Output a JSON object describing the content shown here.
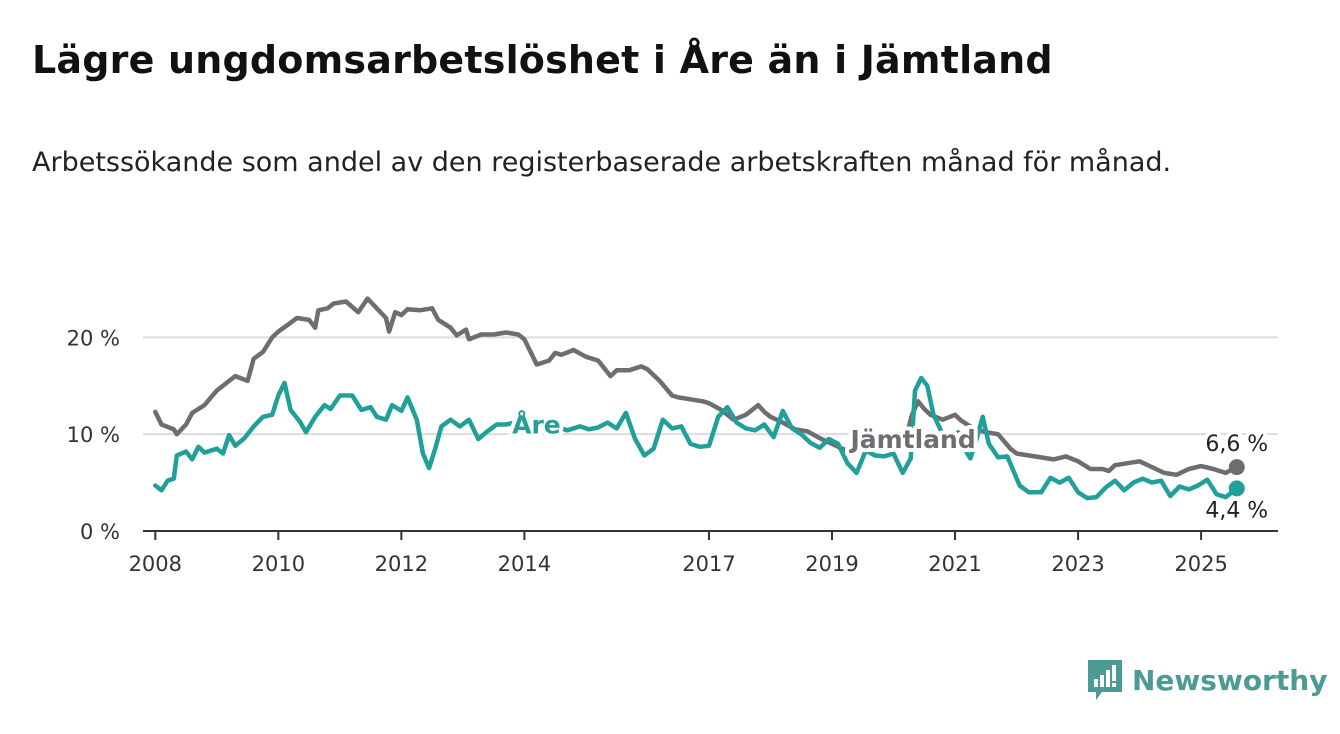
{
  "header": {
    "title": "Lägre ungdomsarbetslöshet i Åre än i Jämtland",
    "subtitle": "Arbetssökande som andel av den registerbaserade arbetskraften månad för månad."
  },
  "brand": {
    "name": "Newsworthy",
    "icon": "newsworthy-logo-icon",
    "color": "#4d9a95"
  },
  "chart_data": {
    "type": "line",
    "title": "Lägre ungdomsarbetslöshet i Åre än i Jämtland",
    "subtitle": "Arbetssökande som andel av den registerbaserade arbetskraften månad för månad.",
    "xlabel": "",
    "ylabel": "",
    "ylim": [
      0,
      22
    ],
    "xlim": [
      2007.8,
      2026.25
    ],
    "grid": "horizontal",
    "x_ticks": [
      2008,
      2010,
      2012,
      2014,
      2017,
      2019,
      2021,
      2023,
      2025
    ],
    "y_ticks": [
      0,
      10,
      20
    ],
    "y_tick_labels": [
      "0 %",
      "10 %",
      "20 %"
    ],
    "series": [
      {
        "name": "Jämtland",
        "color": "#6e6d72",
        "end_label": "6,6 %",
        "points": [
          [
            2008.0,
            12.3
          ],
          [
            2008.1,
            11.0
          ],
          [
            2008.3,
            10.5
          ],
          [
            2008.35,
            10.0
          ],
          [
            2008.5,
            11.0
          ],
          [
            2008.6,
            12.2
          ],
          [
            2008.8,
            13.0
          ],
          [
            2009.0,
            14.5
          ],
          [
            2009.2,
            15.5
          ],
          [
            2009.3,
            16.0
          ],
          [
            2009.5,
            15.5
          ],
          [
            2009.6,
            17.8
          ],
          [
            2009.75,
            18.5
          ],
          [
            2009.9,
            20.0
          ],
          [
            2010.0,
            20.6
          ],
          [
            2010.2,
            21.5
          ],
          [
            2010.3,
            22.0
          ],
          [
            2010.5,
            21.8
          ],
          [
            2010.6,
            21.0
          ],
          [
            2010.65,
            22.8
          ],
          [
            2010.8,
            23.0
          ],
          [
            2010.9,
            23.5
          ],
          [
            2011.1,
            23.7
          ],
          [
            2011.3,
            22.6
          ],
          [
            2011.45,
            24.0
          ],
          [
            2011.6,
            23.0
          ],
          [
            2011.75,
            22.0
          ],
          [
            2011.8,
            20.6
          ],
          [
            2011.9,
            22.6
          ],
          [
            2012.0,
            22.3
          ],
          [
            2012.1,
            22.9
          ],
          [
            2012.3,
            22.8
          ],
          [
            2012.5,
            23.0
          ],
          [
            2012.6,
            21.8
          ],
          [
            2012.8,
            21.0
          ],
          [
            2012.9,
            20.2
          ],
          [
            2013.05,
            20.8
          ],
          [
            2013.1,
            19.8
          ],
          [
            2013.3,
            20.3
          ],
          [
            2013.5,
            20.3
          ],
          [
            2013.7,
            20.5
          ],
          [
            2013.9,
            20.3
          ],
          [
            2014.0,
            19.8
          ],
          [
            2014.2,
            17.2
          ],
          [
            2014.4,
            17.6
          ],
          [
            2014.5,
            18.4
          ],
          [
            2014.6,
            18.2
          ],
          [
            2014.8,
            18.7
          ],
          [
            2015.0,
            18.0
          ],
          [
            2015.2,
            17.6
          ],
          [
            2015.4,
            16.0
          ],
          [
            2015.5,
            16.6
          ],
          [
            2015.7,
            16.6
          ],
          [
            2015.9,
            17.0
          ],
          [
            2016.0,
            16.7
          ],
          [
            2016.2,
            15.5
          ],
          [
            2016.4,
            14.0
          ],
          [
            2016.5,
            13.8
          ],
          [
            2016.7,
            13.6
          ],
          [
            2016.9,
            13.4
          ],
          [
            2017.0,
            13.2
          ],
          [
            2017.2,
            12.5
          ],
          [
            2017.4,
            11.5
          ],
          [
            2017.6,
            12.0
          ],
          [
            2017.8,
            13.0
          ],
          [
            2017.9,
            12.3
          ],
          [
            2018.0,
            11.8
          ],
          [
            2018.2,
            11.2
          ],
          [
            2018.4,
            10.5
          ],
          [
            2018.6,
            10.3
          ],
          [
            2018.8,
            9.6
          ],
          [
            2019.0,
            9.0
          ],
          [
            2019.2,
            8.4
          ],
          [
            2019.4,
            8.6
          ],
          [
            2019.6,
            9.0
          ],
          [
            2019.8,
            9.3
          ],
          [
            2020.0,
            9.0
          ],
          [
            2020.1,
            8.8
          ],
          [
            2020.2,
            9.6
          ],
          [
            2020.3,
            12.0
          ],
          [
            2020.4,
            13.4
          ],
          [
            2020.5,
            12.6
          ],
          [
            2020.6,
            12.0
          ],
          [
            2020.8,
            11.5
          ],
          [
            2021.0,
            12.0
          ],
          [
            2021.1,
            11.4
          ],
          [
            2021.3,
            10.6
          ],
          [
            2021.5,
            10.2
          ],
          [
            2021.7,
            10.0
          ],
          [
            2021.9,
            8.5
          ],
          [
            2022.0,
            8.0
          ],
          [
            2022.2,
            7.8
          ],
          [
            2022.4,
            7.6
          ],
          [
            2022.6,
            7.4
          ],
          [
            2022.8,
            7.7
          ],
          [
            2023.0,
            7.2
          ],
          [
            2023.2,
            6.4
          ],
          [
            2023.4,
            6.4
          ],
          [
            2023.5,
            6.2
          ],
          [
            2023.6,
            6.8
          ],
          [
            2023.8,
            7.0
          ],
          [
            2024.0,
            7.2
          ],
          [
            2024.2,
            6.6
          ],
          [
            2024.4,
            6.0
          ],
          [
            2024.6,
            5.8
          ],
          [
            2024.8,
            6.4
          ],
          [
            2025.0,
            6.7
          ],
          [
            2025.2,
            6.4
          ],
          [
            2025.4,
            6.0
          ],
          [
            2025.58,
            6.6
          ]
        ]
      },
      {
        "name": "Åre",
        "color": "#21a09a",
        "end_label": "4,4 %",
        "points": [
          [
            2008.0,
            4.7
          ],
          [
            2008.1,
            4.2
          ],
          [
            2008.2,
            5.2
          ],
          [
            2008.3,
            5.4
          ],
          [
            2008.35,
            7.8
          ],
          [
            2008.5,
            8.2
          ],
          [
            2008.6,
            7.4
          ],
          [
            2008.7,
            8.7
          ],
          [
            2008.8,
            8.1
          ],
          [
            2009.0,
            8.5
          ],
          [
            2009.1,
            8.0
          ],
          [
            2009.2,
            9.9
          ],
          [
            2009.3,
            8.8
          ],
          [
            2009.45,
            9.6
          ],
          [
            2009.6,
            10.8
          ],
          [
            2009.75,
            11.8
          ],
          [
            2009.9,
            12.0
          ],
          [
            2010.0,
            14.0
          ],
          [
            2010.1,
            15.3
          ],
          [
            2010.2,
            12.5
          ],
          [
            2010.35,
            11.3
          ],
          [
            2010.45,
            10.2
          ],
          [
            2010.6,
            11.8
          ],
          [
            2010.75,
            13.0
          ],
          [
            2010.85,
            12.6
          ],
          [
            2011.0,
            14.0
          ],
          [
            2011.2,
            14.0
          ],
          [
            2011.35,
            12.5
          ],
          [
            2011.5,
            12.8
          ],
          [
            2011.6,
            11.8
          ],
          [
            2011.75,
            11.5
          ],
          [
            2011.85,
            13.0
          ],
          [
            2012.0,
            12.4
          ],
          [
            2012.1,
            13.8
          ],
          [
            2012.25,
            11.5
          ],
          [
            2012.35,
            8.0
          ],
          [
            2012.45,
            6.5
          ],
          [
            2012.55,
            8.5
          ],
          [
            2012.65,
            10.8
          ],
          [
            2012.8,
            11.5
          ],
          [
            2012.95,
            10.8
          ],
          [
            2013.1,
            11.5
          ],
          [
            2013.25,
            9.5
          ],
          [
            2013.4,
            10.3
          ],
          [
            2013.55,
            11.0
          ],
          [
            2013.7,
            11.0
          ],
          [
            2013.85,
            11.2
          ],
          [
            2014.0,
            10.7
          ],
          [
            2014.2,
            11.0
          ],
          [
            2014.35,
            10.2
          ],
          [
            2014.5,
            10.8
          ],
          [
            2014.7,
            10.4
          ],
          [
            2014.9,
            10.8
          ],
          [
            2015.05,
            10.5
          ],
          [
            2015.2,
            10.7
          ],
          [
            2015.35,
            11.2
          ],
          [
            2015.5,
            10.6
          ],
          [
            2015.65,
            12.2
          ],
          [
            2015.8,
            9.5
          ],
          [
            2015.95,
            7.8
          ],
          [
            2016.1,
            8.5
          ],
          [
            2016.25,
            11.5
          ],
          [
            2016.4,
            10.6
          ],
          [
            2016.55,
            10.8
          ],
          [
            2016.7,
            9.0
          ],
          [
            2016.85,
            8.7
          ],
          [
            2017.0,
            8.8
          ],
          [
            2017.15,
            11.8
          ],
          [
            2017.3,
            12.8
          ],
          [
            2017.45,
            11.2
          ],
          [
            2017.6,
            10.6
          ],
          [
            2017.75,
            10.4
          ],
          [
            2017.9,
            11.0
          ],
          [
            2018.05,
            9.7
          ],
          [
            2018.2,
            12.4
          ],
          [
            2018.35,
            10.6
          ],
          [
            2018.5,
            10.0
          ],
          [
            2018.65,
            9.1
          ],
          [
            2018.8,
            8.6
          ],
          [
            2018.95,
            9.5
          ],
          [
            2019.1,
            9.0
          ],
          [
            2019.25,
            7.0
          ],
          [
            2019.4,
            6.0
          ],
          [
            2019.55,
            8.3
          ],
          [
            2019.7,
            7.8
          ],
          [
            2019.85,
            7.7
          ],
          [
            2020.0,
            8.0
          ],
          [
            2020.15,
            6.0
          ],
          [
            2020.28,
            7.5
          ],
          [
            2020.35,
            14.5
          ],
          [
            2020.45,
            15.8
          ],
          [
            2020.55,
            15.0
          ],
          [
            2020.65,
            12.0
          ],
          [
            2020.8,
            10.0
          ],
          [
            2020.95,
            8.8
          ],
          [
            2021.05,
            10.2
          ],
          [
            2021.15,
            8.5
          ],
          [
            2021.25,
            7.5
          ],
          [
            2021.35,
            9.5
          ],
          [
            2021.45,
            11.8
          ],
          [
            2021.55,
            9.0
          ],
          [
            2021.7,
            7.6
          ],
          [
            2021.85,
            7.7
          ],
          [
            2021.95,
            6.2
          ],
          [
            2022.05,
            4.7
          ],
          [
            2022.2,
            4.0
          ],
          [
            2022.4,
            4.0
          ],
          [
            2022.55,
            5.5
          ],
          [
            2022.7,
            5.0
          ],
          [
            2022.85,
            5.5
          ],
          [
            2023.0,
            4.0
          ],
          [
            2023.15,
            3.4
          ],
          [
            2023.3,
            3.5
          ],
          [
            2023.45,
            4.5
          ],
          [
            2023.6,
            5.2
          ],
          [
            2023.75,
            4.2
          ],
          [
            2023.9,
            5.0
          ],
          [
            2024.05,
            5.4
          ],
          [
            2024.2,
            5.0
          ],
          [
            2024.35,
            5.2
          ],
          [
            2024.5,
            3.6
          ],
          [
            2024.65,
            4.6
          ],
          [
            2024.8,
            4.3
          ],
          [
            2024.95,
            4.7
          ],
          [
            2025.1,
            5.3
          ],
          [
            2025.25,
            3.8
          ],
          [
            2025.4,
            3.5
          ],
          [
            2025.58,
            4.4
          ]
        ]
      }
    ],
    "annotations": [
      {
        "text": "Åre",
        "series": "Åre",
        "x": 2013.8,
        "y": 11.0
      },
      {
        "text": "Jämtland",
        "series": "Jämtland",
        "x": 2019.3,
        "y": 9.5
      }
    ]
  }
}
